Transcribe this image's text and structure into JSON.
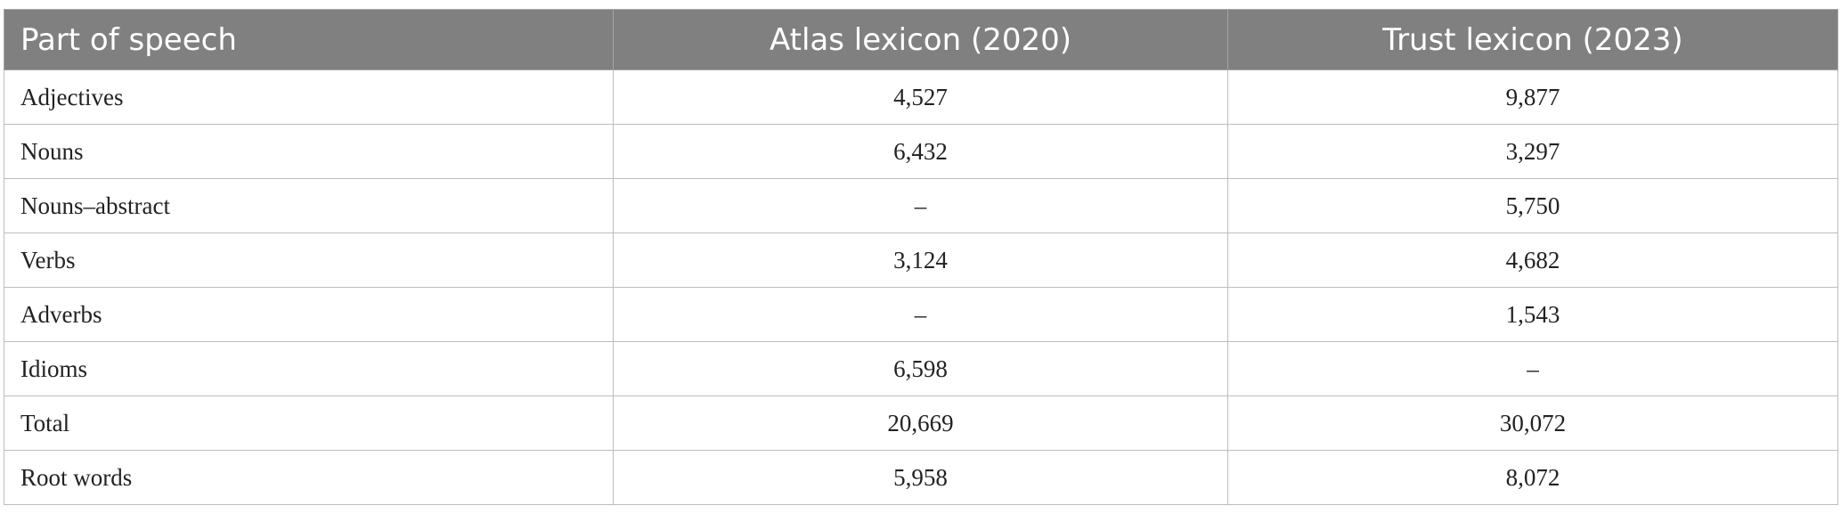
{
  "table": {
    "header": [
      "Part of speech",
      "Atlas lexicon (2020)",
      "Trust lexicon (2023)"
    ],
    "rows": [
      [
        "Adjectives",
        "4,527",
        "9,877"
      ],
      [
        "Nouns",
        "6,432",
        "3,297"
      ],
      [
        "Nouns–abstract",
        "–",
        "5,750"
      ],
      [
        "Verbs",
        "3,124",
        "4,682"
      ],
      [
        "Adverbs",
        "–",
        "1,543"
      ],
      [
        "Idioms",
        "6,598",
        "–"
      ],
      [
        "Total",
        "20,669",
        "30,072"
      ],
      [
        "Root words",
        "5,958",
        "8,072"
      ]
    ]
  }
}
